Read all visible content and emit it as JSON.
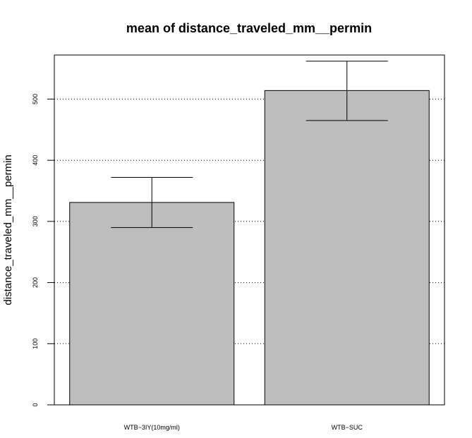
{
  "chart_data": {
    "type": "bar",
    "title": "mean of  distance_traveled_mm__permin",
    "xlabel": "",
    "ylabel": "distance_traveled_mm__permin",
    "categories": [
      "WTB−3IY(10mg/ml)",
      "WTB−SUC"
    ],
    "values": [
      331,
      514
    ],
    "error_low": [
      290,
      465
    ],
    "error_high": [
      372,
      562
    ],
    "ylim": [
      0,
      572
    ],
    "yticks": [
      0,
      100,
      200,
      300,
      400,
      500
    ],
    "grid": "horizontal dotted",
    "bar_color": "#bebebe"
  }
}
